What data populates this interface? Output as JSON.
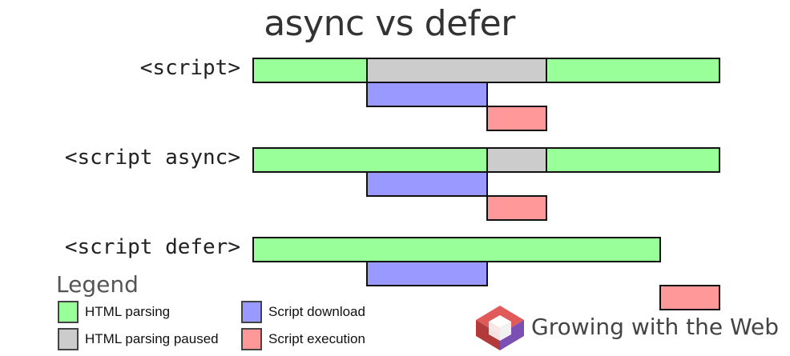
{
  "title": "async vs defer",
  "rows": [
    {
      "label": "<script>",
      "segments": [
        {
          "type": "parsing",
          "start": 0,
          "end": 142
        },
        {
          "type": "paused",
          "start": 142,
          "end": 366
        },
        {
          "type": "parsing",
          "start": 366,
          "end": 582
        },
        {
          "type": "download",
          "start": 142,
          "end": 292
        },
        {
          "type": "execution",
          "start": 292,
          "end": 366
        }
      ]
    },
    {
      "label": "<script async>",
      "segments": [
        {
          "type": "parsing",
          "start": 0,
          "end": 292
        },
        {
          "type": "paused",
          "start": 292,
          "end": 366
        },
        {
          "type": "parsing",
          "start": 366,
          "end": 582
        },
        {
          "type": "download",
          "start": 142,
          "end": 292
        },
        {
          "type": "execution",
          "start": 292,
          "end": 366
        }
      ]
    },
    {
      "label": "<script defer>",
      "segments": [
        {
          "type": "parsing",
          "start": 0,
          "end": 508
        },
        {
          "type": "download",
          "start": 142,
          "end": 292
        },
        {
          "type": "execution",
          "start": 508,
          "end": 582
        }
      ]
    }
  ],
  "legend": {
    "title": "Legend",
    "items": [
      {
        "type": "parsing",
        "label": "HTML parsing"
      },
      {
        "type": "paused",
        "label": "HTML parsing paused"
      },
      {
        "type": "download",
        "label": "Script download"
      },
      {
        "type": "execution",
        "label": "Script execution"
      }
    ]
  },
  "colors": {
    "parsing": "#99ff99",
    "paused": "#cccccc",
    "download": "#9999ff",
    "execution": "#ff9999"
  },
  "brand": {
    "name": "Growing with the Web",
    "logo_icon": "cube-logo-icon"
  }
}
